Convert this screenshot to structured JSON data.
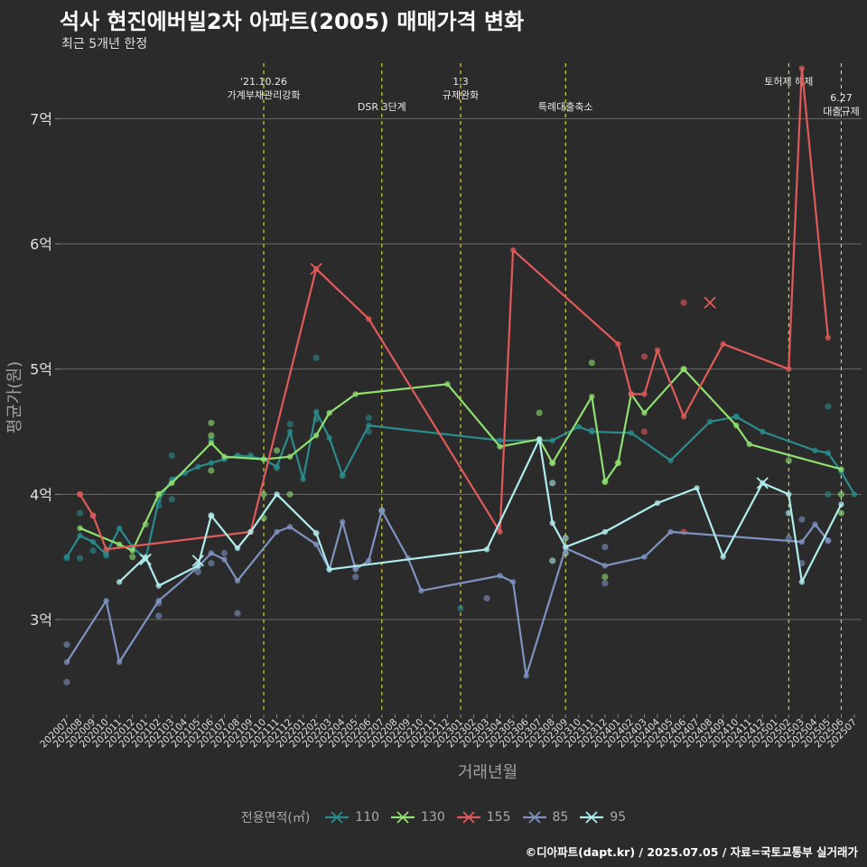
{
  "header": {
    "title": "석사 현진에버빌2차 아파트(2005) 매매가격 변화",
    "subtitle": "최근 5개년 한정"
  },
  "caption": "©디아파트(dapt.kr) / 2025.07.05 / 자료=국토교통부 실거래가",
  "legend": {
    "title": "전용면적(㎡)",
    "items": [
      {
        "label": "110",
        "color": "#2a8c8c"
      },
      {
        "label": "130",
        "color": "#90e070"
      },
      {
        "label": "155",
        "color": "#e05a5a"
      },
      {
        "label": "85",
        "color": "#7f93c0"
      },
      {
        "label": "95",
        "color": "#b0ecec"
      }
    ]
  },
  "chart_data": {
    "type": "line",
    "xlabel": "거래년월",
    "ylabel": "평균가(원)",
    "ylim": [
      2.25,
      7.5
    ],
    "y_ticks": [
      {
        "value": 3,
        "label": "3억"
      },
      {
        "value": 4,
        "label": "4억"
      },
      {
        "value": 5,
        "label": "5억"
      },
      {
        "value": 6,
        "label": "6억"
      },
      {
        "value": 7,
        "label": "7억"
      }
    ],
    "grid": true,
    "categories": [
      "202007",
      "202008",
      "202009",
      "202010",
      "202011",
      "202012",
      "202101",
      "202102",
      "202103",
      "202104",
      "202105",
      "202106",
      "202107",
      "202108",
      "202109",
      "202110",
      "202111",
      "202112",
      "202201",
      "202202",
      "202203",
      "202204",
      "202205",
      "202206",
      "202207",
      "202208",
      "202209",
      "202210",
      "202211",
      "202212",
      "202301",
      "202302",
      "202303",
      "202304",
      "202305",
      "202306",
      "202307",
      "202308",
      "202309",
      "202310",
      "202311",
      "202312",
      "202401",
      "202402",
      "202403",
      "202404",
      "202405",
      "202406",
      "202407",
      "202408",
      "202409",
      "202410",
      "202411",
      "202412",
      "202501",
      "202502",
      "202503",
      "202504",
      "202505",
      "202506",
      "202507"
    ],
    "events": [
      {
        "category": "202110",
        "label_lines": [
          "'21.10.26",
          "가계부채관리강화"
        ],
        "row": 0
      },
      {
        "category": "202207",
        "label_lines": [
          "DSR 3단계"
        ],
        "row": 1
      },
      {
        "category": "202301",
        "label_lines": [
          "1.3",
          "규제완화"
        ],
        "row": 0
      },
      {
        "category": "202309",
        "label_lines": [
          "특례대출축소"
        ],
        "row": 1
      },
      {
        "category": "202502",
        "label_lines": [
          "토허제 해제"
        ],
        "row": 0
      },
      {
        "category": "202506",
        "label_lines": [
          "6.27",
          "대출규제"
        ],
        "row": 1
      }
    ],
    "series": [
      {
        "name": "110",
        "color": "#2a8c8c",
        "line": [
          [
            "202007",
            3.5
          ],
          [
            "202008",
            3.67
          ],
          [
            "202009",
            3.62
          ],
          [
            "202010",
            3.52
          ],
          [
            "202011",
            3.73
          ],
          [
            "202012",
            3.58
          ],
          [
            "202101",
            3.48
          ],
          [
            "202102",
            3.95
          ],
          [
            "202103",
            4.12
          ],
          [
            "202104",
            4.17
          ],
          [
            "202105",
            4.22
          ],
          [
            "202106",
            4.25
          ],
          [
            "202107",
            4.28
          ],
          [
            "202108",
            4.31
          ],
          [
            "202109",
            4.3
          ],
          [
            "202110",
            4.28
          ],
          [
            "202111",
            4.22
          ],
          [
            "202112",
            4.5
          ],
          [
            "202201",
            4.12
          ],
          [
            "202202",
            4.66
          ],
          [
            "202203",
            4.45
          ],
          [
            "202204",
            4.15
          ],
          [
            "202206",
            4.55
          ],
          [
            "202304",
            4.43
          ],
          [
            "202308",
            4.43
          ],
          [
            "202310",
            4.54
          ],
          [
            "202311",
            4.5
          ],
          [
            "202402",
            4.49
          ],
          [
            "202405",
            4.27
          ],
          [
            "202408",
            4.58
          ],
          [
            "202410",
            4.62
          ],
          [
            "202412",
            4.5
          ],
          [
            "202504",
            4.35
          ],
          [
            "202505",
            4.33
          ],
          [
            "202506",
            4.18
          ],
          [
            "202507",
            4.0
          ]
        ],
        "points": [
          [
            "202007",
            3.49
          ],
          [
            "202008",
            3.85
          ],
          [
            "202008",
            3.49
          ],
          [
            "202009",
            3.55
          ],
          [
            "202010",
            3.51
          ],
          [
            "202012",
            3.58
          ],
          [
            "202102",
            3.91
          ],
          [
            "202103",
            4.31
          ],
          [
            "202103",
            3.96
          ],
          [
            "202106",
            4.44
          ],
          [
            "202109",
            4.31
          ],
          [
            "202111",
            4.21
          ],
          [
            "202112",
            4.56
          ],
          [
            "202202",
            5.09
          ],
          [
            "202202",
            4.6
          ],
          [
            "202204",
            4.15
          ],
          [
            "202206",
            4.61
          ],
          [
            "202206",
            4.5
          ],
          [
            "202301",
            3.09
          ],
          [
            "202311",
            4.51
          ],
          [
            "202410",
            4.62
          ],
          [
            "202505",
            4.7
          ],
          [
            "202505",
            4.0
          ]
        ],
        "crosses": []
      },
      {
        "name": "130",
        "color": "#90e070",
        "line": [
          [
            "202008",
            3.73
          ],
          [
            "202011",
            3.6
          ],
          [
            "202012",
            3.55
          ],
          [
            "202102",
            4.0
          ],
          [
            "202103",
            4.09
          ],
          [
            "202106",
            4.41
          ],
          [
            "202107",
            4.3
          ],
          [
            "202110",
            4.28
          ],
          [
            "202112",
            4.3
          ],
          [
            "202202",
            4.47
          ],
          [
            "202203",
            4.65
          ],
          [
            "202205",
            4.8
          ],
          [
            "202212",
            4.88
          ],
          [
            "202304",
            4.38
          ],
          [
            "202307",
            4.44
          ],
          [
            "202308",
            4.25
          ],
          [
            "202311",
            4.78
          ],
          [
            "202312",
            4.1
          ],
          [
            "202401",
            4.25
          ],
          [
            "202402",
            4.8
          ],
          [
            "202403",
            4.65
          ],
          [
            "202406",
            5.0
          ],
          [
            "202410",
            4.55
          ],
          [
            "202411",
            4.4
          ],
          [
            "202506",
            4.2
          ]
        ],
        "points": [
          [
            "202012",
            3.5
          ],
          [
            "202101",
            3.76
          ],
          [
            "202102",
            4.0
          ],
          [
            "202106",
            4.57
          ],
          [
            "202106",
            4.47
          ],
          [
            "202106",
            4.19
          ],
          [
            "202110",
            4.0
          ],
          [
            "202110",
            3.81
          ],
          [
            "202111",
            4.35
          ],
          [
            "202112",
            4.0
          ],
          [
            "202307",
            4.65
          ],
          [
            "202308",
            4.25
          ],
          [
            "202311",
            5.05
          ],
          [
            "202312",
            4.1
          ],
          [
            "202312",
            3.34
          ],
          [
            "202401",
            4.25
          ],
          [
            "202406",
            5.0
          ],
          [
            "202502",
            4.27
          ],
          [
            "202506",
            4.0
          ],
          [
            "202506",
            3.85
          ]
        ],
        "crosses": []
      },
      {
        "name": "155",
        "color": "#e05a5a",
        "line": [
          [
            "202008",
            4.0
          ],
          [
            "202009",
            3.83
          ],
          [
            "202010",
            3.56
          ],
          [
            "202109",
            3.7
          ],
          [
            "202202",
            5.8
          ],
          [
            "202206",
            5.4
          ],
          [
            "202304",
            3.7
          ],
          [
            "202305",
            5.95
          ],
          [
            "202401",
            5.2
          ],
          [
            "202402",
            4.8
          ],
          [
            "202403",
            4.8
          ],
          [
            "202404",
            5.15
          ],
          [
            "202406",
            4.62
          ],
          [
            "202409",
            5.2
          ],
          [
            "202502",
            5.0
          ],
          [
            "202503",
            7.4
          ],
          [
            "202505",
            5.25
          ]
        ],
        "points": [
          [
            "202008",
            4.0
          ],
          [
            "202009",
            3.83
          ],
          [
            "202403",
            5.1
          ],
          [
            "202403",
            4.5
          ],
          [
            "202406",
            5.53
          ],
          [
            "202406",
            3.7
          ]
        ],
        "crosses": [
          [
            "202202",
            5.8
          ],
          [
            "202408",
            5.53
          ]
        ]
      },
      {
        "name": "85",
        "color": "#7f93c0",
        "line": [
          [
            "202007",
            2.66
          ],
          [
            "202010",
            3.15
          ],
          [
            "202011",
            2.66
          ],
          [
            "202102",
            3.15
          ],
          [
            "202105",
            3.42
          ],
          [
            "202106",
            3.53
          ],
          [
            "202107",
            3.48
          ],
          [
            "202108",
            3.31
          ],
          [
            "202111",
            3.7
          ],
          [
            "202112",
            3.74
          ],
          [
            "202202",
            3.6
          ],
          [
            "202203",
            3.4
          ],
          [
            "202204",
            3.78
          ],
          [
            "202205",
            3.4
          ],
          [
            "202206",
            3.47
          ],
          [
            "202207",
            3.87
          ],
          [
            "202209",
            3.49
          ],
          [
            "202210",
            3.23
          ],
          [
            "202304",
            3.35
          ],
          [
            "202305",
            3.3
          ],
          [
            "202306",
            2.55
          ],
          [
            "202309",
            3.57
          ],
          [
            "202312",
            3.43
          ],
          [
            "202403",
            3.5
          ],
          [
            "202405",
            3.7
          ],
          [
            "202503",
            3.62
          ],
          [
            "202504",
            3.76
          ],
          [
            "202505",
            3.63
          ]
        ],
        "points": [
          [
            "202007",
            2.8
          ],
          [
            "202007",
            2.5
          ],
          [
            "202102",
            3.03
          ],
          [
            "202102",
            3.13
          ],
          [
            "202105",
            3.38
          ],
          [
            "202106",
            3.45
          ],
          [
            "202107",
            3.53
          ],
          [
            "202108",
            3.05
          ],
          [
            "202202",
            3.69
          ],
          [
            "202205",
            3.34
          ],
          [
            "202205",
            3.42
          ],
          [
            "202303",
            3.17
          ],
          [
            "202312",
            3.58
          ],
          [
            "202312",
            3.29
          ],
          [
            "202502",
            3.65
          ],
          [
            "202503",
            3.8
          ],
          [
            "202503",
            3.45
          ],
          [
            "202505",
            3.63
          ]
        ],
        "crosses": []
      },
      {
        "name": "95",
        "color": "#b0ecec",
        "line": [
          [
            "202011",
            3.3
          ],
          [
            "202101",
            3.5
          ],
          [
            "202102",
            3.27
          ],
          [
            "202105",
            3.43
          ],
          [
            "202106",
            3.83
          ],
          [
            "202108",
            3.57
          ],
          [
            "202109",
            3.7
          ],
          [
            "202111",
            4.0
          ],
          [
            "202202",
            3.69
          ],
          [
            "202203",
            3.4
          ],
          [
            "202303",
            3.56
          ],
          [
            "202307",
            4.44
          ],
          [
            "202308",
            3.77
          ],
          [
            "202309",
            3.58
          ],
          [
            "202312",
            3.7
          ],
          [
            "202404",
            3.93
          ],
          [
            "202407",
            4.05
          ],
          [
            "202409",
            3.5
          ],
          [
            "202412",
            4.09
          ],
          [
            "202502",
            4.0
          ],
          [
            "202503",
            3.3
          ],
          [
            "202506",
            3.92
          ]
        ],
        "points": [
          [
            "202106",
            3.83
          ],
          [
            "202207",
            3.87
          ],
          [
            "202308",
            4.09
          ],
          [
            "202308",
            3.47
          ],
          [
            "202309",
            3.65
          ],
          [
            "202309",
            3.53
          ],
          [
            "202502",
            3.85
          ]
        ],
        "crosses": [
          [
            "202101",
            3.48
          ],
          [
            "202105",
            3.47
          ],
          [
            "202412",
            4.09
          ]
        ]
      }
    ]
  }
}
